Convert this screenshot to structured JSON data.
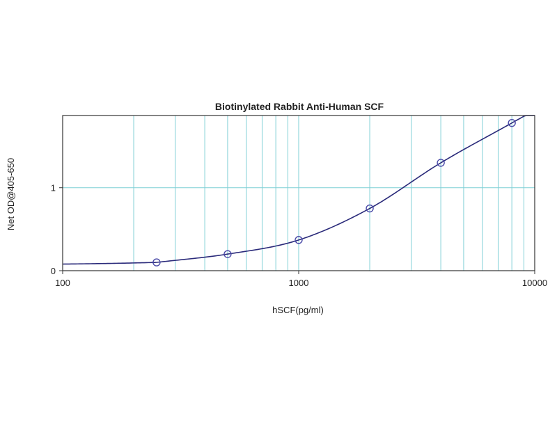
{
  "chart_data": {
    "type": "scatter",
    "title": "Biotinylated Rabbit Anti-Human SCF",
    "xlabel": "hSCF(pg/ml)",
    "ylabel": "Net OD@405-650",
    "x_scale": "log",
    "xlim": [
      100,
      10000
    ],
    "ylim": [
      0,
      1.87
    ],
    "x_ticks": [
      {
        "value": 100,
        "label": "100"
      },
      {
        "value": 1000,
        "label": "1000"
      },
      {
        "value": 10000,
        "label": "10000"
      }
    ],
    "y_ticks": [
      {
        "value": 0,
        "label": "0"
      },
      {
        "value": 1,
        "label": "1"
      }
    ],
    "grid": true,
    "series": [
      {
        "x": [
          250,
          500,
          1000,
          2000,
          4000,
          8000
        ],
        "y": [
          0.1,
          0.2,
          0.37,
          0.75,
          1.3,
          1.78
        ],
        "fit_curve": true
      }
    ],
    "colors": {
      "grid": "#7fcfd6",
      "curve": "#2a2a7a",
      "marker": "#4a4aa8",
      "frame": "#333333"
    }
  }
}
